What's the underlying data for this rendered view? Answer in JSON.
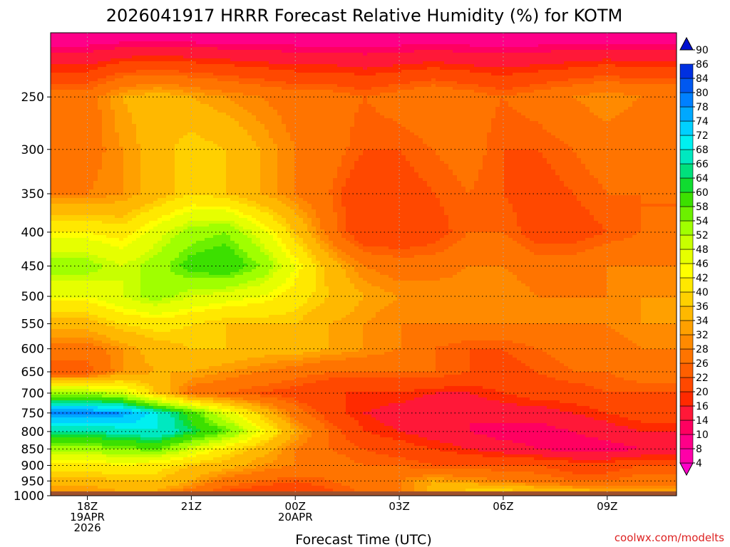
{
  "chart_data": {
    "type": "heatmap",
    "title": "2026041917 HRRR Forecast Relative Humidity (%) for KOTM",
    "xlabel": "Forecast Time (UTC)",
    "ylabel": "",
    "credit": "coolwx.com/modelts",
    "x_hours": [
      18,
      19,
      20,
      21,
      22,
      23,
      24,
      25,
      26,
      27,
      28,
      29,
      30,
      31,
      32,
      33,
      34
    ],
    "xlim": [
      16.94,
      35.0
    ],
    "x_ticks": [
      {
        "hour": 18,
        "lines": [
          "18Z",
          "19APR",
          "2026"
        ]
      },
      {
        "hour": 21,
        "lines": [
          "21Z"
        ]
      },
      {
        "hour": 24,
        "lines": [
          "00Z",
          "20APR"
        ]
      },
      {
        "hour": 27,
        "lines": [
          "03Z"
        ]
      },
      {
        "hour": 30,
        "lines": [
          "06Z"
        ]
      },
      {
        "hour": 33,
        "lines": [
          "09Z"
        ]
      }
    ],
    "pressure_levels": [
      200,
      250,
      300,
      350,
      400,
      450,
      500,
      550,
      600,
      650,
      700,
      750,
      800,
      850,
      900,
      950,
      1000
    ],
    "y_ticks": [
      250,
      300,
      350,
      400,
      450,
      500,
      550,
      600,
      650,
      700,
      750,
      800,
      850,
      900,
      950,
      1000
    ],
    "ylim": [
      200,
      1000
    ],
    "ground_pressure": 985,
    "values": [
      [
        10,
        10,
        10,
        10,
        10,
        10,
        10,
        10,
        10,
        10,
        10,
        10,
        10,
        10,
        10,
        10,
        10
      ],
      [
        30,
        36,
        38,
        36,
        34,
        32,
        30,
        30,
        28,
        30,
        32,
        30,
        28,
        30,
        32,
        34,
        32
      ],
      [
        30,
        34,
        38,
        42,
        40,
        36,
        32,
        30,
        26,
        26,
        28,
        30,
        26,
        26,
        28,
        30,
        28
      ],
      [
        32,
        34,
        38,
        42,
        40,
        36,
        32,
        28,
        22,
        24,
        26,
        28,
        26,
        24,
        26,
        28,
        28
      ],
      [
        46,
        44,
        50,
        56,
        58,
        50,
        40,
        30,
        22,
        22,
        24,
        28,
        28,
        24,
        24,
        26,
        28
      ],
      [
        56,
        52,
        56,
        62,
        64,
        58,
        48,
        38,
        32,
        30,
        30,
        32,
        32,
        30,
        30,
        32,
        32
      ],
      [
        48,
        52,
        56,
        52,
        50,
        48,
        44,
        40,
        36,
        34,
        34,
        34,
        34,
        32,
        32,
        32,
        34
      ],
      [
        38,
        42,
        44,
        42,
        40,
        40,
        40,
        36,
        34,
        32,
        32,
        32,
        32,
        32,
        32,
        32,
        34
      ],
      [
        30,
        34,
        38,
        40,
        40,
        38,
        38,
        36,
        34,
        32,
        28,
        26,
        26,
        28,
        30,
        30,
        32
      ],
      [
        26,
        34,
        36,
        36,
        34,
        32,
        30,
        28,
        28,
        28,
        28,
        26,
        24,
        26,
        28,
        28,
        30
      ],
      [
        56,
        52,
        40,
        30,
        28,
        26,
        24,
        22,
        22,
        22,
        20,
        20,
        22,
        24,
        24,
        26,
        26
      ],
      [
        82,
        80,
        72,
        62,
        50,
        40,
        30,
        24,
        20,
        18,
        16,
        16,
        18,
        18,
        20,
        22,
        24
      ],
      [
        68,
        70,
        72,
        66,
        60,
        48,
        36,
        28,
        22,
        20,
        18,
        16,
        14,
        14,
        16,
        18,
        20
      ],
      [
        56,
        58,
        60,
        52,
        44,
        38,
        32,
        28,
        26,
        24,
        22,
        20,
        18,
        16,
        14,
        14,
        16
      ],
      [
        44,
        46,
        44,
        40,
        38,
        34,
        32,
        30,
        28,
        28,
        26,
        26,
        26,
        26,
        24,
        24,
        26
      ],
      [
        38,
        40,
        40,
        36,
        30,
        28,
        26,
        28,
        30,
        32,
        36,
        34,
        32,
        30,
        28,
        28,
        30
      ],
      [
        32,
        34,
        34,
        28,
        24,
        22,
        22,
        24,
        28,
        32,
        38,
        44,
        46,
        44,
        42,
        40,
        38
      ]
    ],
    "colorbar": {
      "levels": [
        "4",
        "8",
        "10",
        "14",
        "16",
        "20",
        "22",
        "26",
        "28",
        "32",
        "34",
        "36",
        "40",
        "42",
        "46",
        "48",
        "52",
        "54",
        "58",
        "60",
        "64",
        "66",
        "68",
        "72",
        "74",
        "78",
        "80",
        "84",
        "86",
        "90"
      ],
      "colors": [
        "#ff00c8",
        "#ff00a8",
        "#ff0088",
        "#ff0060",
        "#ff1838",
        "#ff2a00",
        "#ff4800",
        "#ff5f00",
        "#ff7400",
        "#ff8a00",
        "#ffa000",
        "#ffb800",
        "#ffd000",
        "#ffe800",
        "#ffff00",
        "#e6ff00",
        "#c8ff00",
        "#a0ff00",
        "#6cf000",
        "#3ce000",
        "#10dc30",
        "#00e07c",
        "#00e8c0",
        "#00f0f0",
        "#00d0ff",
        "#00a8ff",
        "#0080ff",
        "#0058f0",
        "#0030e0",
        "#0010d0"
      ]
    },
    "grid": true,
    "colors": {
      "ground": "#a0522d",
      "credit": "#dd2222"
    }
  }
}
